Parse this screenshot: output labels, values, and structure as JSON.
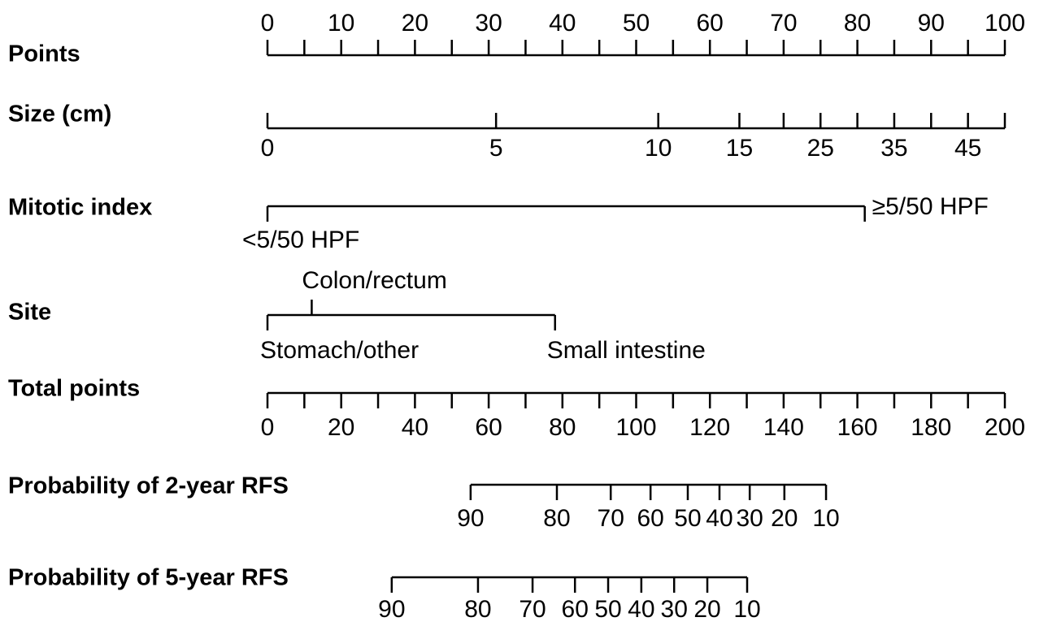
{
  "chart_data": {
    "type": "nomogram",
    "rows": [
      {
        "name": "Points",
        "xlim": [
          0,
          100
        ],
        "ticks": [
          0,
          null,
          10,
          null,
          20,
          null,
          30,
          null,
          40,
          null,
          50,
          null,
          60,
          null,
          70,
          null,
          80,
          null,
          90,
          null,
          100
        ],
        "points": [
          0,
          5,
          10,
          15,
          20,
          25,
          30,
          35,
          40,
          45,
          50,
          55,
          60,
          65,
          70,
          75,
          80,
          85,
          90,
          95,
          100
        ]
      },
      {
        "name": "Size (cm)",
        "xlim": [
          0,
          100
        ],
        "ticks": [
          0,
          5,
          10,
          15,
          null,
          25,
          null,
          35,
          null,
          45,
          null
        ],
        "points": [
          0,
          31,
          53,
          64,
          70,
          75,
          80,
          85,
          90,
          95,
          100
        ]
      },
      {
        "name": "Mitotic index",
        "xlim": [
          0,
          100
        ],
        "ticks": [
          "<5/50 HPF",
          "≥5/50 HPF"
        ],
        "points": [
          0,
          81
        ]
      },
      {
        "name": "Site",
        "xlim": [
          0,
          100
        ],
        "ticks": [
          "Stomach/other",
          "Colon/rectum",
          "Small intestine"
        ],
        "points": [
          0,
          6,
          39
        ]
      },
      {
        "name": "Total points",
        "xlim": [
          0,
          200
        ],
        "ticks": [
          0,
          null,
          20,
          null,
          40,
          null,
          60,
          null,
          80,
          null,
          100,
          null,
          120,
          null,
          140,
          null,
          160,
          null,
          180,
          null,
          200
        ],
        "points": [
          0,
          10,
          20,
          30,
          40,
          50,
          60,
          70,
          80,
          90,
          100,
          110,
          120,
          130,
          140,
          150,
          160,
          170,
          180,
          190,
          200
        ]
      },
      {
        "name": "Probability of 2-year RFS",
        "xlim": [
          0,
          200
        ],
        "ticks": [
          90,
          80,
          70,
          60,
          50,
          40,
          30,
          20,
          10
        ],
        "points": [
          55.1,
          78.5,
          93.1,
          103.9,
          114,
          122.6,
          130.8,
          140.2,
          151.5
        ]
      },
      {
        "name": "Probability of 5-year RFS",
        "xlim": [
          0,
          200
        ],
        "ticks": [
          90,
          80,
          70,
          60,
          50,
          40,
          30,
          20,
          10
        ],
        "points": [
          33.7,
          57.1,
          71.9,
          83.4,
          92.4,
          101.4,
          110.3,
          119.3,
          130.1
        ]
      }
    ]
  }
}
